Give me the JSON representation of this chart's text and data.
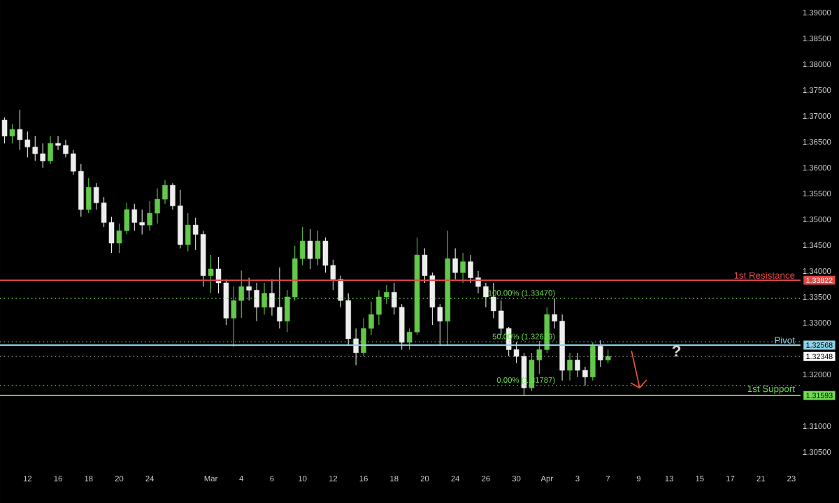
{
  "chart_data": {
    "type": "candlestick",
    "categories": [
      null,
      null,
      null,
      "12",
      null,
      null,
      null,
      "16",
      null,
      null,
      null,
      "18",
      null,
      null,
      null,
      "20",
      null,
      null,
      null,
      "24",
      null,
      null,
      null,
      null,
      null,
      null,
      null,
      "Mar",
      null,
      null,
      null,
      "4",
      null,
      null,
      null,
      "6",
      null,
      null,
      null,
      "10",
      null,
      null,
      null,
      "12",
      null,
      null,
      null,
      "16",
      null,
      null,
      null,
      "18",
      null,
      null,
      null,
      "20",
      null,
      null,
      null,
      "24",
      null,
      null,
      null,
      "26",
      null,
      null,
      null,
      "30",
      null,
      null,
      null,
      "Apr",
      null,
      null,
      null,
      "3",
      null,
      null,
      null,
      "7",
      null,
      null,
      null,
      "9",
      null,
      null,
      null,
      "13",
      null,
      null,
      null,
      "15",
      null,
      null,
      null,
      "17",
      null,
      null,
      null,
      "21",
      null,
      null,
      null,
      "23",
      null
    ],
    "ohlc": [
      [
        1.3692,
        1.3697,
        1.3647,
        1.3661
      ],
      [
        1.3661,
        1.3684,
        1.3647,
        1.3674
      ],
      [
        1.3674,
        1.3712,
        1.3634,
        1.3654
      ],
      [
        1.3654,
        1.367,
        1.362,
        1.364
      ],
      [
        1.364,
        1.3661,
        1.3613,
        1.3627
      ],
      [
        1.3627,
        1.3647,
        1.36,
        1.3613
      ],
      [
        1.3613,
        1.3661,
        1.3607,
        1.3647
      ],
      [
        1.3647,
        1.3661,
        1.3634,
        1.3643
      ],
      [
        1.3643,
        1.3654,
        1.362,
        1.3627
      ],
      [
        1.3627,
        1.3634,
        1.3586,
        1.3593
      ],
      [
        1.3593,
        1.3607,
        1.3505,
        1.3519
      ],
      [
        1.3519,
        1.358,
        1.3512,
        1.3562
      ],
      [
        1.3562,
        1.357,
        1.3519,
        1.3532
      ],
      [
        1.3532,
        1.3543,
        1.3485,
        1.3494
      ],
      [
        1.3494,
        1.3505,
        1.3435,
        1.3454
      ],
      [
        1.3454,
        1.3492,
        1.3435,
        1.3478
      ],
      [
        1.3478,
        1.3532,
        1.3471,
        1.3519
      ],
      [
        1.3519,
        1.353,
        1.3478,
        1.3494
      ],
      [
        1.3494,
        1.3519,
        1.3471,
        1.3489
      ],
      [
        1.3489,
        1.3535,
        1.3478,
        1.3512
      ],
      [
        1.3512,
        1.356,
        1.3492,
        1.3539
      ],
      [
        1.3539,
        1.3576,
        1.353,
        1.3566
      ],
      [
        1.3566,
        1.357,
        1.3519,
        1.3526
      ],
      [
        1.3526,
        1.3557,
        1.3444,
        1.3451
      ],
      [
        1.3451,
        1.3512,
        1.3438,
        1.3489
      ],
      [
        1.3489,
        1.3503,
        1.3441,
        1.3471
      ],
      [
        1.3471,
        1.3478,
        1.337,
        1.3391
      ],
      [
        1.3391,
        1.3431,
        1.3357,
        1.3404
      ],
      [
        1.3404,
        1.3427,
        1.3357,
        1.3377
      ],
      [
        1.3377,
        1.3384,
        1.3296,
        1.3309
      ],
      [
        1.3309,
        1.337,
        1.3253,
        1.3343
      ],
      [
        1.3343,
        1.3401,
        1.3309,
        1.337
      ],
      [
        1.337,
        1.3387,
        1.3343,
        1.3363
      ],
      [
        1.3363,
        1.3377,
        1.3303,
        1.333
      ],
      [
        1.333,
        1.3377,
        1.3316,
        1.3357
      ],
      [
        1.3357,
        1.3384,
        1.3314,
        1.333
      ],
      [
        1.333,
        1.3407,
        1.3289,
        1.3303
      ],
      [
        1.3303,
        1.3363,
        1.3282,
        1.335
      ],
      [
        1.335,
        1.3449,
        1.3343,
        1.3424
      ],
      [
        1.3424,
        1.3485,
        1.3411,
        1.3458
      ],
      [
        1.3458,
        1.3481,
        1.3404,
        1.3424
      ],
      [
        1.3424,
        1.3478,
        1.3411,
        1.3458
      ],
      [
        1.3458,
        1.3465,
        1.3397,
        1.3411
      ],
      [
        1.3411,
        1.3422,
        1.3363,
        1.3384
      ],
      [
        1.3384,
        1.3391,
        1.333,
        1.3343
      ],
      [
        1.3343,
        1.3357,
        1.3255,
        1.3269
      ],
      [
        1.3269,
        1.3289,
        1.3218,
        1.3242
      ],
      [
        1.3242,
        1.3309,
        1.3235,
        1.3289
      ],
      [
        1.3289,
        1.3341,
        1.3276,
        1.3316
      ],
      [
        1.3316,
        1.3363,
        1.3296,
        1.335
      ],
      [
        1.335,
        1.3373,
        1.3336,
        1.3359
      ],
      [
        1.3359,
        1.3377,
        1.3316,
        1.333
      ],
      [
        1.333,
        1.3336,
        1.3248,
        1.3262
      ],
      [
        1.3262,
        1.3289,
        1.3248,
        1.3282
      ],
      [
        1.3282,
        1.3465,
        1.3276,
        1.3431
      ],
      [
        1.3431,
        1.3444,
        1.3377,
        1.3391
      ],
      [
        1.3391,
        1.3397,
        1.3296,
        1.333
      ],
      [
        1.333,
        1.3336,
        1.3255,
        1.3303
      ],
      [
        1.3303,
        1.3478,
        1.3255,
        1.3424
      ],
      [
        1.3424,
        1.3444,
        1.3384,
        1.3397
      ],
      [
        1.3397,
        1.3435,
        1.3377,
        1.3418
      ],
      [
        1.3418,
        1.3431,
        1.3377,
        1.3387
      ],
      [
        1.3387,
        1.34,
        1.3357,
        1.337
      ],
      [
        1.337,
        1.3377,
        1.333,
        1.335
      ],
      [
        1.335,
        1.3377,
        1.3309,
        1.3323
      ],
      [
        1.3323,
        1.3343,
        1.3276,
        1.3289
      ],
      [
        1.3289,
        1.3292,
        1.3235,
        1.3248
      ],
      [
        1.3248,
        1.3262,
        1.3222,
        1.3235
      ],
      [
        1.3235,
        1.3242,
        1.3159,
        1.3174
      ],
      [
        1.3174,
        1.3242,
        1.3168,
        1.3228
      ],
      [
        1.3228,
        1.3265,
        1.3201,
        1.3248
      ],
      [
        1.3248,
        1.333,
        1.3242,
        1.3316
      ],
      [
        1.3316,
        1.3347,
        1.3289,
        1.3303
      ],
      [
        1.3303,
        1.3316,
        1.3188,
        1.3208
      ],
      [
        1.3208,
        1.3242,
        1.3188,
        1.3228
      ],
      [
        1.3228,
        1.3242,
        1.3195,
        1.3208
      ],
      [
        1.3208,
        1.3215,
        1.3179,
        1.3195
      ],
      [
        1.3195,
        1.3262,
        1.3188,
        1.3255
      ],
      [
        1.3255,
        1.3266,
        1.3215,
        1.3228
      ],
      [
        1.3228,
        1.3248,
        1.3222,
        1.3235
      ],
      null,
      null,
      null,
      null,
      null,
      null,
      null,
      null,
      null,
      null,
      null,
      null,
      null,
      null,
      null,
      null,
      null,
      null,
      null,
      null,
      null,
      null,
      null,
      null,
      null
    ],
    "colors": [
      "#eeeeee",
      "#62c94a",
      "#eeeeee",
      "#eeeeee",
      "#eeeeee",
      "#eeeeee",
      "#62c94a",
      "#eeeeee",
      "#eeeeee",
      "#eeeeee",
      "#eeeeee",
      "#62c94a",
      "#eeeeee",
      "#eeeeee",
      "#eeeeee",
      "#62c94a",
      "#62c94a",
      "#eeeeee",
      "#eeeeee",
      "#62c94a",
      "#62c94a",
      "#62c94a",
      "#eeeeee",
      "#eeeeee",
      "#62c94a",
      "#eeeeee",
      "#eeeeee",
      "#62c94a",
      "#eeeeee",
      "#eeeeee",
      "#62c94a",
      "#62c94a",
      "#eeeeee",
      "#eeeeee",
      "#62c94a",
      "#eeeeee",
      "#eeeeee",
      "#62c94a",
      "#62c94a",
      "#62c94a",
      "#eeeeee",
      "#62c94a",
      "#eeeeee",
      "#eeeeee",
      "#eeeeee",
      "#eeeeee",
      "#eeeeee",
      "#62c94a",
      "#62c94a",
      "#62c94a",
      "#62c94a",
      "#eeeeee",
      "#eeeeee",
      "#62c94a",
      "#62c94a",
      "#eeeeee",
      "#eeeeee",
      "#eeeeee",
      "#62c94a",
      "#eeeeee",
      "#62c94a",
      "#eeeeee",
      "#eeeeee",
      "#eeeeee",
      "#eeeeee",
      "#eeeeee",
      "#eeeeee",
      "#eeeeee",
      "#eeeeee",
      "#62c94a",
      "#62c94a",
      "#62c94a",
      "#eeeeee",
      "#eeeeee",
      "#62c94a",
      "#eeeeee",
      "#eeeeee",
      "#62c94a",
      "#eeeeee",
      "#62c94a",
      null,
      null,
      null,
      null,
      null,
      null,
      null,
      null,
      null,
      null,
      null,
      null,
      null,
      null,
      null,
      null,
      null,
      null,
      null,
      null,
      null,
      null,
      null,
      null,
      null
    ],
    "ylim": [
      1.305,
      1.39
    ],
    "yticks": [
      {
        "value": 1.305,
        "label": "1.30500"
      },
      {
        "value": 1.31,
        "label": "1.31000"
      },
      {
        "value": 1.32,
        "label": "1.32000"
      },
      {
        "value": 1.33,
        "label": "1.33000"
      },
      {
        "value": 1.335,
        "label": "1.33500"
      },
      {
        "value": 1.34,
        "label": "1.34000"
      },
      {
        "value": 1.345,
        "label": "1.34500"
      },
      {
        "value": 1.35,
        "label": "1.35000"
      },
      {
        "value": 1.355,
        "label": "1.35500"
      },
      {
        "value": 1.36,
        "label": "1.36000"
      },
      {
        "value": 1.365,
        "label": "1.36500"
      },
      {
        "value": 1.37,
        "label": "1.37000"
      },
      {
        "value": 1.375,
        "label": "1.37500"
      },
      {
        "value": 1.38,
        "label": "1.38000"
      },
      {
        "value": 1.385,
        "label": "1.38500"
      },
      {
        "value": 1.39,
        "label": "1.39000"
      }
    ],
    "ref_lines": [
      {
        "axis": "y",
        "value": 1.33822,
        "label": "1st Resistance",
        "color": "#e04848",
        "line_style": "solid"
      },
      {
        "axis": "y",
        "value": 1.32568,
        "label": "Pivot",
        "color": "#8ed2e8",
        "line_style": "solid"
      },
      {
        "axis": "y",
        "value": 1.31593,
        "label": "1st Support",
        "color": "#6fdc50",
        "line_style": "solid"
      },
      {
        "axis": "y",
        "value": 1.3347,
        "label": "100.00% (1.33470)",
        "color": "#6fdc50",
        "line_style": "dotted"
      },
      {
        "axis": "y",
        "value": 1.32629,
        "label": "50.00% (1.32629)",
        "color": "#6fdc50",
        "line_style": "dotted"
      },
      {
        "axis": "y",
        "value": 1.31787,
        "label": "0.00% (1.31787)",
        "color": "#6fdc50",
        "line_style": "dotted"
      },
      {
        "axis": "y",
        "value": 1.32348,
        "color": "#ffffff",
        "line_style": "dotted"
      }
    ],
    "annotations": [
      "?",
      "1.33822",
      "1.32568",
      "1.31593",
      "1.32348"
    ]
  }
}
